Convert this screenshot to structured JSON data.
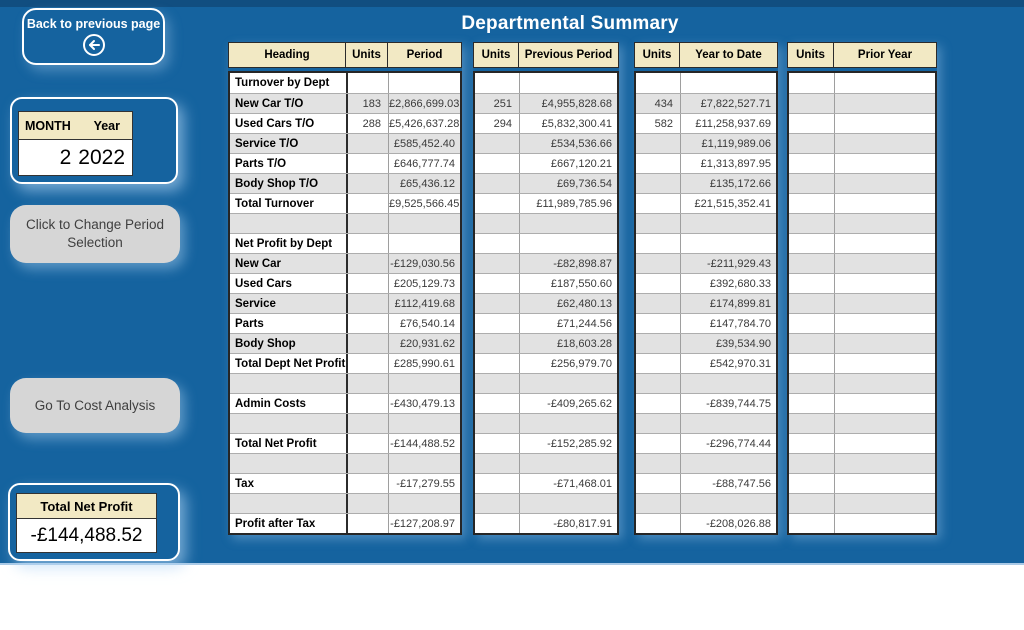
{
  "header": {
    "title": "Departmental Summary"
  },
  "colors": {
    "background_blue": "#15639F",
    "top_strip_blue": "#114E80",
    "header_cream": "#F2E9C4",
    "alt_row_gray": "#E2E2E2",
    "button_gray": "#D6D6D6"
  },
  "sidebar": {
    "back_button": {
      "label": "Back to previous page",
      "icon": "arrow-left-circle"
    },
    "period_box": {
      "month_label": "MONTH",
      "year_label": "Year",
      "month_value": "2",
      "year_value": "2022"
    },
    "change_period_button_label": "Click to Change Period Selection",
    "cost_analysis_button_label": "Go To Cost Analysis",
    "total_net_profit_box": {
      "label": "Total Net Profit",
      "value": "-£144,488.52"
    }
  },
  "tables": {
    "t1": {
      "headers": [
        "Heading",
        "Units",
        "Period"
      ]
    },
    "t2": {
      "headers": [
        "Units",
        "Previous Period"
      ]
    },
    "t3": {
      "headers": [
        "Units",
        "Year to Date"
      ]
    },
    "t4": {
      "headers": [
        "Units",
        "Prior Year"
      ]
    },
    "rows": [
      {
        "label": "Turnover by Dept",
        "u1": "",
        "v1": "",
        "u2": "",
        "v2": "",
        "u3": "",
        "v3": "",
        "u4": "",
        "v4": ""
      },
      {
        "label": "New Car T/O",
        "u1": "183",
        "v1": "£2,866,699.03",
        "u2": "251",
        "v2": "£4,955,828.68",
        "u3": "434",
        "v3": "£7,822,527.71",
        "u4": "",
        "v4": ""
      },
      {
        "label": "Used Cars T/O",
        "u1": "288",
        "v1": "£5,426,637.28",
        "u2": "294",
        "v2": "£5,832,300.41",
        "u3": "582",
        "v3": "£11,258,937.69",
        "u4": "",
        "v4": ""
      },
      {
        "label": "Service T/O",
        "u1": "",
        "v1": "£585,452.40",
        "u2": "",
        "v2": "£534,536.66",
        "u3": "",
        "v3": "£1,119,989.06",
        "u4": "",
        "v4": ""
      },
      {
        "label": "Parts T/O",
        "u1": "",
        "v1": "£646,777.74",
        "u2": "",
        "v2": "£667,120.21",
        "u3": "",
        "v3": "£1,313,897.95",
        "u4": "",
        "v4": ""
      },
      {
        "label": "Body Shop T/O",
        "u1": "",
        "v1": "£65,436.12",
        "u2": "",
        "v2": "£69,736.54",
        "u3": "",
        "v3": "£135,172.66",
        "u4": "",
        "v4": ""
      },
      {
        "label": "Total Turnover",
        "u1": "",
        "v1": "£9,525,566.45",
        "u2": "",
        "v2": "£11,989,785.96",
        "u3": "",
        "v3": "£21,515,352.41",
        "u4": "",
        "v4": ""
      },
      {
        "label": "",
        "u1": "",
        "v1": "",
        "u2": "",
        "v2": "",
        "u3": "",
        "v3": "",
        "u4": "",
        "v4": ""
      },
      {
        "label": "Net Profit by Dept",
        "u1": "",
        "v1": "",
        "u2": "",
        "v2": "",
        "u3": "",
        "v3": "",
        "u4": "",
        "v4": ""
      },
      {
        "label": "New Car",
        "u1": "",
        "v1": "-£129,030.56",
        "u2": "",
        "v2": "-£82,898.87",
        "u3": "",
        "v3": "-£211,929.43",
        "u4": "",
        "v4": ""
      },
      {
        "label": "Used Cars",
        "u1": "",
        "v1": "£205,129.73",
        "u2": "",
        "v2": "£187,550.60",
        "u3": "",
        "v3": "£392,680.33",
        "u4": "",
        "v4": ""
      },
      {
        "label": "Service",
        "u1": "",
        "v1": "£112,419.68",
        "u2": "",
        "v2": "£62,480.13",
        "u3": "",
        "v3": "£174,899.81",
        "u4": "",
        "v4": ""
      },
      {
        "label": "Parts",
        "u1": "",
        "v1": "£76,540.14",
        "u2": "",
        "v2": "£71,244.56",
        "u3": "",
        "v3": "£147,784.70",
        "u4": "",
        "v4": ""
      },
      {
        "label": "Body Shop",
        "u1": "",
        "v1": "£20,931.62",
        "u2": "",
        "v2": "£18,603.28",
        "u3": "",
        "v3": "£39,534.90",
        "u4": "",
        "v4": ""
      },
      {
        "label": "Total Dept Net Profit",
        "u1": "",
        "v1": "£285,990.61",
        "u2": "",
        "v2": "£256,979.70",
        "u3": "",
        "v3": "£542,970.31",
        "u4": "",
        "v4": ""
      },
      {
        "label": "",
        "u1": "",
        "v1": "",
        "u2": "",
        "v2": "",
        "u3": "",
        "v3": "",
        "u4": "",
        "v4": ""
      },
      {
        "label": "Admin Costs",
        "u1": "",
        "v1": "-£430,479.13",
        "u2": "",
        "v2": "-£409,265.62",
        "u3": "",
        "v3": "-£839,744.75",
        "u4": "",
        "v4": ""
      },
      {
        "label": "",
        "u1": "",
        "v1": "",
        "u2": "",
        "v2": "",
        "u3": "",
        "v3": "",
        "u4": "",
        "v4": ""
      },
      {
        "label": "Total Net Profit",
        "u1": "",
        "v1": "-£144,488.52",
        "u2": "",
        "v2": "-£152,285.92",
        "u3": "",
        "v3": "-£296,774.44",
        "u4": "",
        "v4": ""
      },
      {
        "label": "",
        "u1": "",
        "v1": "",
        "u2": "",
        "v2": "",
        "u3": "",
        "v3": "",
        "u4": "",
        "v4": ""
      },
      {
        "label": "Tax",
        "u1": "",
        "v1": "-£17,279.55",
        "u2": "",
        "v2": "-£71,468.01",
        "u3": "",
        "v3": "-£88,747.56",
        "u4": "",
        "v4": ""
      },
      {
        "label": "",
        "u1": "",
        "v1": "",
        "u2": "",
        "v2": "",
        "u3": "",
        "v3": "",
        "u4": "",
        "v4": ""
      },
      {
        "label": "Profit after Tax",
        "u1": "",
        "v1": "-£127,208.97",
        "u2": "",
        "v2": "-£80,817.91",
        "u3": "",
        "v3": "-£208,026.88",
        "u4": "",
        "v4": ""
      }
    ]
  }
}
